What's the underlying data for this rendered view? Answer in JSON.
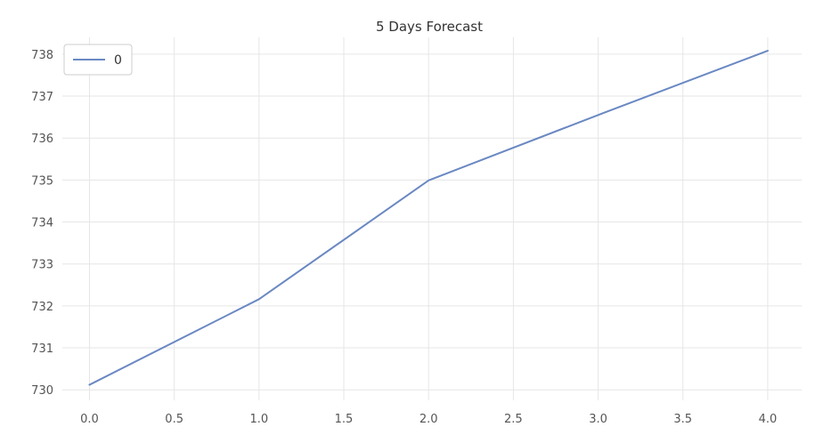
{
  "chart_data": {
    "type": "line",
    "title": "5 Days Forecast",
    "xlabel": "",
    "ylabel": "",
    "x": [
      0,
      1,
      2,
      3,
      4
    ],
    "x_ticks": [
      "0.0",
      "0.5",
      "1.0",
      "1.5",
      "2.0",
      "2.5",
      "3.0",
      "3.5",
      "4.0"
    ],
    "y_ticks": [
      "730",
      "731",
      "732",
      "733",
      "734",
      "735",
      "736",
      "737",
      "738"
    ],
    "xlim": [
      -0.16,
      4.2
    ],
    "ylim": [
      729.75,
      738.4
    ],
    "grid": true,
    "legend_position": "top-left",
    "series": [
      {
        "name": "0",
        "color": "#6a88c2",
        "values": [
          730.12,
          732.16,
          734.99,
          736.55,
          738.08
        ]
      }
    ]
  }
}
